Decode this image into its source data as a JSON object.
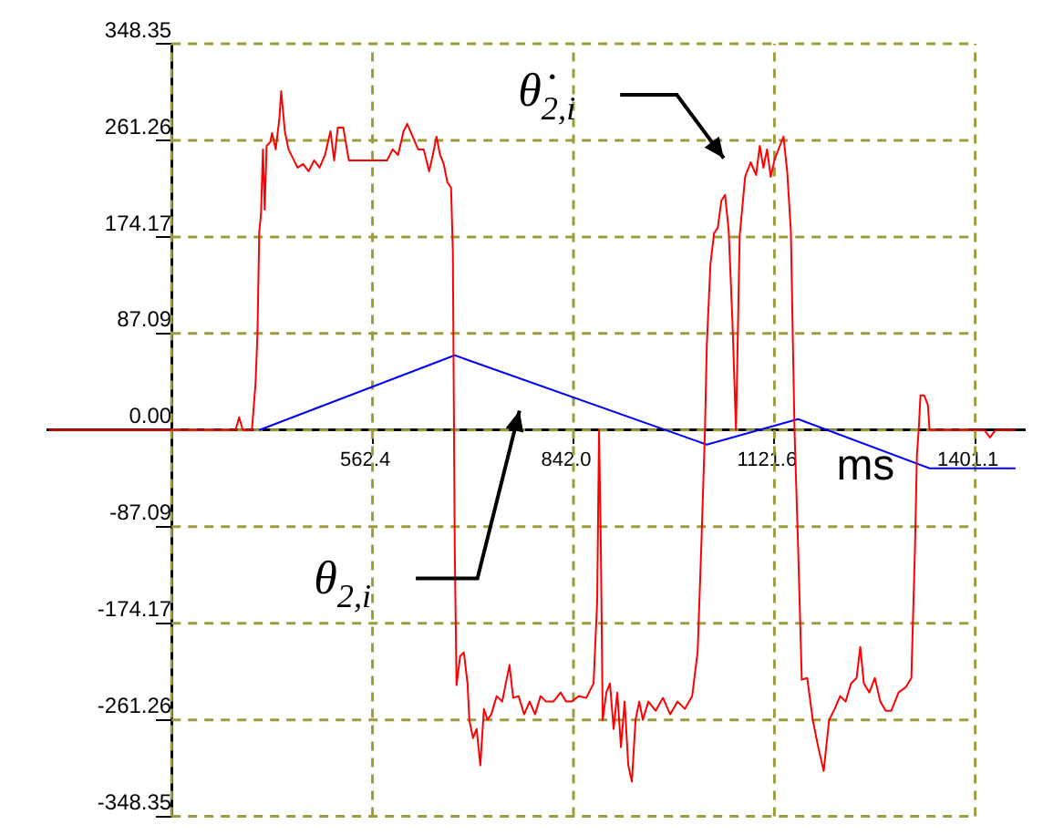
{
  "chart_data": {
    "type": "line",
    "xlabel": "ms",
    "xlim": [
      110,
      1470
    ],
    "ylim": [
      -348.35,
      348.35
    ],
    "xticks": [
      {
        "value": 282.8,
        "label": null
      },
      562.4,
      {
        "value": 842,
        "label": "842.0"
      },
      1121.6,
      1401.1
    ],
    "yticks": [
      -348.35,
      -261.26,
      -174.17,
      -87.09,
      {
        "value": 0,
        "label": "0.00"
      },
      87.09,
      174.17,
      261.26,
      348.35
    ],
    "grid": true,
    "legend": false,
    "marker": "none",
    "line_style": "solid",
    "annotations": [
      "θ̇$_{2,i}$",
      "θ$_{2,i}$"
    ],
    "series": [
      {
        "color": "#ff0000",
        "x": [
          112.5,
          371.8,
          376.8,
          381.9,
          394.6,
          399.7,
          402.3,
          404.8,
          407.3,
          409.9,
          412.4,
          415.0,
          420.1,
          422.6,
          427.7,
          432.8,
          435.3,
          440.4,
          445.5,
          453.1,
          458.2,
          465.8,
          473.4,
          481.1,
          488.7,
          496.3,
          503.9,
          509.0,
          514.1,
          521.7,
          529.4,
          562.4,
          582.7,
          590.4,
          598.0,
          605.6,
          610.7,
          618.3,
          625.9,
          633.6,
          641.2,
          646.3,
          651.4,
          656.4,
          661.5,
          666.6,
          671.7,
          674.2,
          676.8,
          679.3,
          684.4,
          689.5,
          694.6,
          697.1,
          702.2,
          707.3,
          712.4,
          717.4,
          722.5,
          727.6,
          735.2,
          742.9,
          747.9,
          753.0,
          758.1,
          765.7,
          773.4,
          781.0,
          788.6,
          796.2,
          803.9,
          814.0,
          824.2,
          831.8,
          839.5,
          849.6,
          859.8,
          870.0,
          875.0,
          877.6,
          880.1,
          882.7,
          887.8,
          892.8,
          897.9,
          903.0,
          908.1,
          913.2,
          918.3,
          923.3,
          928.4,
          933.5,
          938.6,
          946.2,
          956.4,
          966.5,
          976.7,
          986.9,
          997.0,
          1007.2,
          1014.8,
          1019.9,
          1025.0,
          1027.5,
          1032.6,
          1037.7,
          1042.8,
          1047.9,
          1053.0,
          1058.0,
          1063.1,
          1068.2,
          1073.3,
          1080.9,
          1088.6,
          1096.2,
          1101.3,
          1106.3,
          1111.4,
          1116.5,
          1121.6,
          1129.2,
          1134.3,
          1139.4,
          1144.5,
          1149.6,
          1154.6,
          1159.7,
          1167.3,
          1175.0,
          1182.6,
          1190.2,
          1197.8,
          1205.5,
          1213.1,
          1220.7,
          1228.3,
          1236.0,
          1241.1,
          1246.1,
          1253.8,
          1261.4,
          1269.0,
          1276.6,
          1284.3,
          1294.4,
          1304.6,
          1312.2,
          1317.3,
          1319.9,
          1322.4,
          1324.9,
          1330.0,
          1335.1,
          1337.6,
          1413.9,
          1421.5,
          1429.2,
          1457.1
        ],
        "values": [
          0,
          0,
          11.5,
          0,
          0,
          42.7,
          87.1,
          179.1,
          195.5,
          253.1,
          198.8,
          256.3,
          259.6,
          267.8,
          253.1,
          281.0,
          305.6,
          269.5,
          253.1,
          243.2,
          236.6,
          239.9,
          233.3,
          243.2,
          236.6,
          248.1,
          269.5,
          243.2,
          272.8,
          272.8,
          243.2,
          243.2,
          243.2,
          253.1,
          248.1,
          269.5,
          276.1,
          264.6,
          253.1,
          253.1,
          233.3,
          248.1,
          264.6,
          248.1,
          239.9,
          223.5,
          218.5,
          161.0,
          -105.2,
          -230.0,
          -203.8,
          -200.5,
          -228.4,
          -261.3,
          -277.7,
          -269.5,
          -302.3,
          -251.4,
          -261.3,
          -256.3,
          -239.9,
          -244.8,
          -228.4,
          -211.9,
          -241.5,
          -239.9,
          -256.3,
          -244.8,
          -256.3,
          -239.9,
          -244.8,
          -244.8,
          -236.6,
          -244.8,
          -244.8,
          -239.9,
          -241.5,
          -228.4,
          -154.5,
          0,
          -105.2,
          -261.3,
          -236.6,
          -228.4,
          -269.5,
          -236.6,
          -285.9,
          -244.8,
          -302.3,
          -317.1,
          -261.3,
          -244.8,
          -261.3,
          -244.8,
          -253.1,
          -241.5,
          -256.3,
          -244.8,
          -251.4,
          -239.9,
          -200.0,
          -105.2,
          0,
          75.6,
          149.5,
          177.5,
          182.4,
          207.0,
          212.0,
          180.0,
          100.0,
          0,
          175.0,
          228.4,
          241.5,
          230.0,
          256.3,
          236.6,
          253.1,
          228.4,
          243.2,
          256.3,
          264.6,
          233.3,
          180.0,
          0,
          -105.2,
          -225.1,
          -223.5,
          -261.3,
          -285.9,
          -307.3,
          -261.3,
          -251.4,
          -239.9,
          -244.8,
          -228.4,
          -223.5,
          -195.5,
          -228.4,
          -236.6,
          -223.5,
          -244.8,
          -253.1,
          -253.1,
          -236.6,
          -231.7,
          -223.5,
          -105.2,
          -23.0,
          0,
          31.2,
          31.2,
          23.0,
          0,
          0,
          -6.6,
          0,
          0
        ]
      },
      {
        "color": "#0000ff",
        "x": [
          404.8,
          676.8,
          1027.5,
          1154.6,
          1337.6,
          1457.1
        ],
        "values": [
          0,
          67.4,
          -13.1,
          9.9,
          -34.5,
          -34.5
        ]
      }
    ]
  }
}
